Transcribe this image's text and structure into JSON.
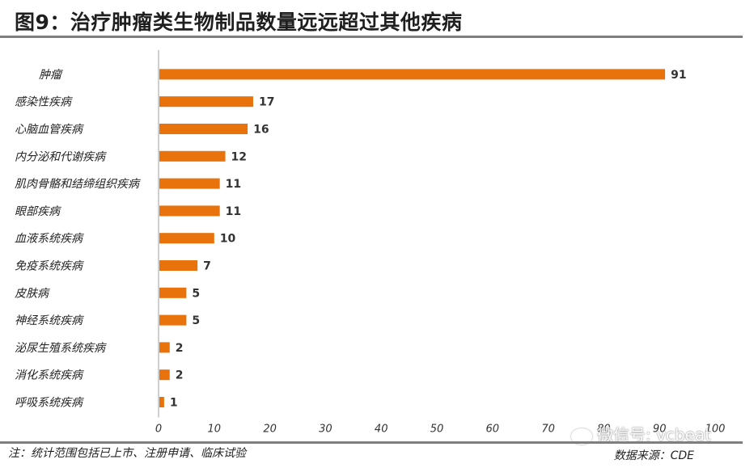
{
  "header": {
    "title": "图9：治疗肿瘤类生物制品数量远远超过其他疾病"
  },
  "footer": {
    "note": "注：统计范围包括已上市、注册申请、临床试验",
    "source": "数据来源：CDE"
  },
  "watermark": {
    "text": "微信号: vcbeat"
  },
  "chart_data": {
    "type": "bar",
    "orientation": "horizontal",
    "categories": [
      "肿瘤",
      "感染性疾病",
      "心脑血管疾病",
      "内分泌和代谢疾病",
      "肌肉骨骼和结缔组织疾病",
      "眼部疾病",
      "血液系统疾病",
      "免疫系统疾病",
      "皮肤病",
      "神经系统疾病",
      "泌尿生殖系统疾病",
      "消化系统疾病",
      "呼吸系统疾病"
    ],
    "values": [
      91,
      17,
      16,
      12,
      11,
      11,
      10,
      7,
      5,
      5,
      2,
      2,
      1
    ],
    "xlim": [
      0,
      100
    ],
    "xticks": [
      0,
      10,
      20,
      30,
      40,
      50,
      60,
      70,
      80,
      90,
      100
    ],
    "grid": false,
    "legend": "none",
    "data_labels": true,
    "bar_color": "#e8730c"
  }
}
